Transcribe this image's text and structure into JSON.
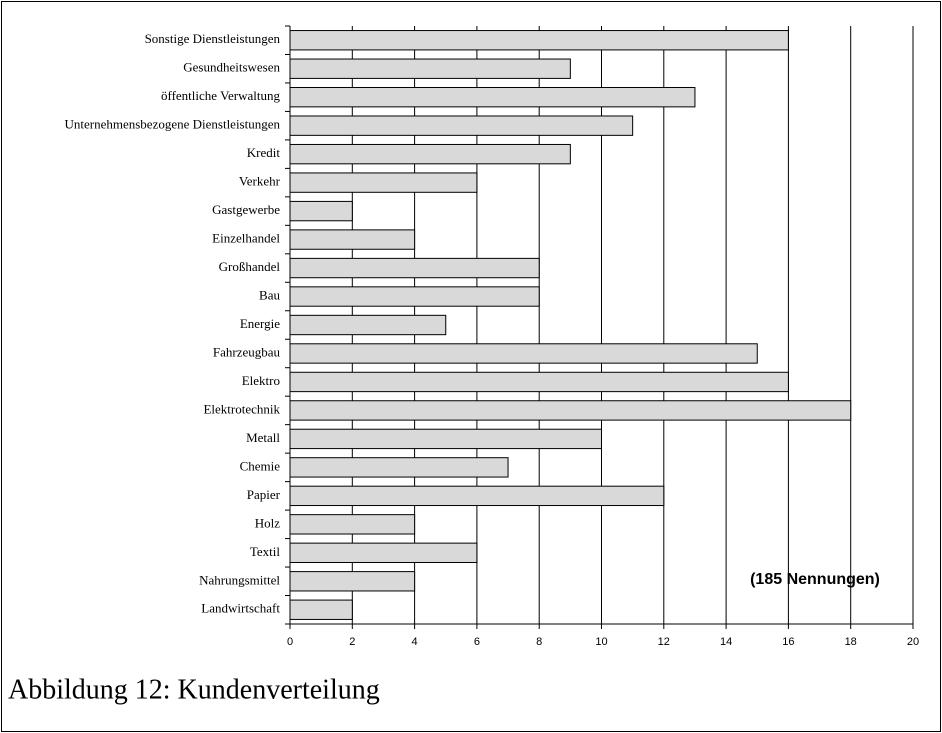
{
  "chart_data": {
    "type": "bar",
    "orientation": "horizontal",
    "caption": "Abbildung 12: Kundenverteilung",
    "annotation": "(185 Nennungen)",
    "categories": [
      "Sonstige Dienstleistungen",
      "Gesundheitswesen",
      "öffentliche Verwaltung",
      "Unternehmensbezogene Dienstleistungen",
      "Kredit",
      "Verkehr",
      "Gastgewerbe",
      "Einzelhandel",
      "Großhandel",
      "Bau",
      "Energie",
      "Fahrzeugbau",
      "Elektro",
      "Elektrotechnik",
      "Metall",
      "Chemie",
      "Papier",
      "Holz",
      "Textil",
      "Nahrungsmittel",
      "Landwirtschaft"
    ],
    "values": [
      16,
      9,
      13,
      11,
      9,
      6,
      2,
      4,
      8,
      8,
      5,
      15,
      16,
      18,
      10,
      7,
      12,
      4,
      6,
      4,
      2
    ],
    "color": "#d9d9d9",
    "xlim": [
      0,
      20
    ],
    "xticks": [
      0,
      2,
      4,
      6,
      8,
      10,
      12,
      14,
      16,
      18,
      20
    ],
    "grid": true
  }
}
